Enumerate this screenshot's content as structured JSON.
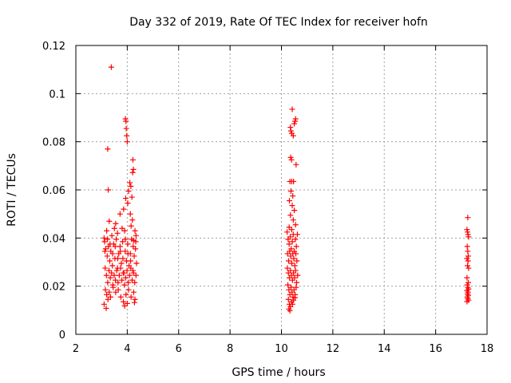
{
  "chart_data": {
    "type": "scatter",
    "title": "Day 332 of 2019, Rate Of TEC Index for receiver hofn",
    "xlabel": "GPS time / hours",
    "ylabel": "ROTI / TECUs",
    "xlim": [
      2,
      18
    ],
    "ylim": [
      0,
      0.12
    ],
    "x_ticks": [
      2,
      4,
      6,
      8,
      10,
      12,
      14,
      16,
      18
    ],
    "y_ticks": [
      0,
      0.02,
      0.04,
      0.06,
      0.08,
      0.1,
      0.12
    ],
    "x_tick_labels": [
      "2",
      "4",
      "6",
      "8",
      "10",
      "12",
      "14",
      "16",
      "18"
    ],
    "y_tick_labels": [
      "0",
      "0.02",
      "0.04",
      "0.06",
      "0.08",
      "0.1",
      "0.12"
    ],
    "grid": true,
    "marker": "+",
    "series": [
      {
        "name": "ROTI",
        "color": "#ff0000",
        "points": [
          [
            3.38,
            0.111
          ],
          [
            3.24,
            0.077
          ],
          [
            3.26,
            0.06
          ],
          [
            3.93,
            0.0895
          ],
          [
            3.95,
            0.0885
          ],
          [
            3.96,
            0.0855
          ],
          [
            3.98,
            0.0825
          ],
          [
            4.0,
            0.08
          ],
          [
            4.22,
            0.0725
          ],
          [
            4.24,
            0.0685
          ],
          [
            4.21,
            0.0672
          ],
          [
            4.1,
            0.063
          ],
          [
            4.14,
            0.0615
          ],
          [
            4.05,
            0.0595
          ],
          [
            4.18,
            0.057
          ],
          [
            3.94,
            0.0565
          ],
          [
            4.02,
            0.0545
          ],
          [
            3.86,
            0.052
          ],
          [
            4.12,
            0.05
          ],
          [
            4.2,
            0.0475
          ],
          [
            3.72,
            0.05
          ],
          [
            3.55,
            0.046
          ],
          [
            3.3,
            0.047
          ],
          [
            3.2,
            0.043
          ],
          [
            3.1,
            0.04
          ],
          [
            3.4,
            0.041
          ],
          [
            3.62,
            0.042
          ],
          [
            3.8,
            0.044
          ],
          [
            4.3,
            0.043
          ],
          [
            4.34,
            0.041
          ],
          [
            4.25,
            0.039
          ],
          [
            4.15,
            0.045
          ],
          [
            3.9,
            0.043
          ],
          [
            3.5,
            0.044
          ],
          [
            3.12,
            0.0385
          ],
          [
            3.16,
            0.0355
          ],
          [
            3.22,
            0.0325
          ],
          [
            3.27,
            0.0365
          ],
          [
            3.32,
            0.0305
          ],
          [
            3.36,
            0.0345
          ],
          [
            3.42,
            0.0285
          ],
          [
            3.47,
            0.0375
          ],
          [
            3.52,
            0.0315
          ],
          [
            3.57,
            0.0395
          ],
          [
            3.62,
            0.0275
          ],
          [
            3.67,
            0.0335
          ],
          [
            3.72,
            0.0365
          ],
          [
            3.77,
            0.0295
          ],
          [
            3.82,
            0.0385
          ],
          [
            3.87,
            0.0255
          ],
          [
            3.92,
            0.0345
          ],
          [
            3.97,
            0.0305
          ],
          [
            4.02,
            0.0375
          ],
          [
            4.07,
            0.0285
          ],
          [
            4.12,
            0.0335
          ],
          [
            4.17,
            0.0395
          ],
          [
            4.22,
            0.0265
          ],
          [
            4.27,
            0.0325
          ],
          [
            4.32,
            0.0355
          ],
          [
            4.36,
            0.0295
          ],
          [
            3.14,
            0.0275
          ],
          [
            3.19,
            0.0245
          ],
          [
            3.24,
            0.0215
          ],
          [
            3.29,
            0.0265
          ],
          [
            3.34,
            0.0235
          ],
          [
            3.39,
            0.0255
          ],
          [
            3.44,
            0.0205
          ],
          [
            3.49,
            0.0245
          ],
          [
            3.54,
            0.0225
          ],
          [
            3.59,
            0.0265
          ],
          [
            3.64,
            0.0215
          ],
          [
            3.69,
            0.0245
          ],
          [
            3.74,
            0.0275
          ],
          [
            3.79,
            0.0225
          ],
          [
            3.84,
            0.0255
          ],
          [
            3.89,
            0.0205
          ],
          [
            3.94,
            0.0235
          ],
          [
            3.99,
            0.0265
          ],
          [
            4.04,
            0.0215
          ],
          [
            4.09,
            0.0245
          ],
          [
            4.14,
            0.0275
          ],
          [
            4.19,
            0.0225
          ],
          [
            4.24,
            0.0255
          ],
          [
            4.29,
            0.0215
          ],
          [
            4.34,
            0.0245
          ],
          [
            3.15,
            0.0185
          ],
          [
            3.2,
            0.0165
          ],
          [
            3.25,
            0.0145
          ],
          [
            3.3,
            0.0175
          ],
          [
            3.35,
            0.0155
          ],
          [
            3.45,
            0.0195
          ],
          [
            3.55,
            0.0175
          ],
          [
            3.65,
            0.0185
          ],
          [
            3.75,
            0.0155
          ],
          [
            3.85,
            0.0135
          ],
          [
            3.95,
            0.0165
          ],
          [
            4.05,
            0.0185
          ],
          [
            4.15,
            0.0155
          ],
          [
            4.25,
            0.0175
          ],
          [
            4.3,
            0.0145
          ],
          [
            3.1,
            0.0125
          ],
          [
            3.18,
            0.0108
          ],
          [
            3.9,
            0.0118
          ],
          [
            4.0,
            0.0128
          ],
          [
            4.28,
            0.0132
          ],
          [
            3.13,
            0.0345
          ],
          [
            3.23,
            0.0395
          ],
          [
            3.33,
            0.0375
          ],
          [
            3.43,
            0.0335
          ],
          [
            3.53,
            0.0365
          ],
          [
            3.63,
            0.0315
          ],
          [
            3.73,
            0.0345
          ],
          [
            3.83,
            0.0315
          ],
          [
            3.93,
            0.0395
          ],
          [
            4.03,
            0.0335
          ],
          [
            4.13,
            0.0305
          ],
          [
            4.23,
            0.0365
          ],
          [
            4.33,
            0.0385
          ],
          [
            10.42,
            0.0935
          ],
          [
            10.55,
            0.0895
          ],
          [
            10.53,
            0.0885
          ],
          [
            10.5,
            0.0875
          ],
          [
            10.35,
            0.086
          ],
          [
            10.37,
            0.0845
          ],
          [
            10.4,
            0.0835
          ],
          [
            10.46,
            0.0825
          ],
          [
            10.36,
            0.0735
          ],
          [
            10.39,
            0.0725
          ],
          [
            10.57,
            0.0705
          ],
          [
            10.33,
            0.0635
          ],
          [
            10.4,
            0.0635
          ],
          [
            10.47,
            0.0635
          ],
          [
            10.37,
            0.0595
          ],
          [
            10.44,
            0.0575
          ],
          [
            10.31,
            0.0555
          ],
          [
            10.42,
            0.0535
          ],
          [
            10.5,
            0.0515
          ],
          [
            10.35,
            0.0495
          ],
          [
            10.46,
            0.0475
          ],
          [
            10.55,
            0.0455
          ],
          [
            10.3,
            0.0445
          ],
          [
            10.4,
            0.0435
          ],
          [
            10.22,
            0.0425
          ],
          [
            10.26,
            0.0395
          ],
          [
            10.3,
            0.0375
          ],
          [
            10.34,
            0.0405
          ],
          [
            10.38,
            0.0355
          ],
          [
            10.42,
            0.0385
          ],
          [
            10.46,
            0.0415
          ],
          [
            10.5,
            0.0345
          ],
          [
            10.54,
            0.0395
          ],
          [
            10.58,
            0.0365
          ],
          [
            10.62,
            0.0415
          ],
          [
            10.24,
            0.0335
          ],
          [
            10.28,
            0.0305
          ],
          [
            10.32,
            0.0345
          ],
          [
            10.36,
            0.0325
          ],
          [
            10.4,
            0.0295
          ],
          [
            10.44,
            0.0335
          ],
          [
            10.48,
            0.0315
          ],
          [
            10.52,
            0.0285
          ],
          [
            10.56,
            0.0335
          ],
          [
            10.6,
            0.0305
          ],
          [
            10.23,
            0.0275
          ],
          [
            10.27,
            0.0255
          ],
          [
            10.31,
            0.0235
          ],
          [
            10.35,
            0.0265
          ],
          [
            10.39,
            0.0245
          ],
          [
            10.43,
            0.0225
          ],
          [
            10.47,
            0.0255
          ],
          [
            10.51,
            0.0235
          ],
          [
            10.55,
            0.0265
          ],
          [
            10.59,
            0.0215
          ],
          [
            10.63,
            0.0245
          ],
          [
            10.25,
            0.0205
          ],
          [
            10.29,
            0.0185
          ],
          [
            10.33,
            0.0165
          ],
          [
            10.37,
            0.0195
          ],
          [
            10.41,
            0.0175
          ],
          [
            10.45,
            0.0155
          ],
          [
            10.49,
            0.0185
          ],
          [
            10.53,
            0.0165
          ],
          [
            10.57,
            0.0195
          ],
          [
            10.27,
            0.0145
          ],
          [
            10.31,
            0.0125
          ],
          [
            10.35,
            0.0115
          ],
          [
            10.39,
            0.0135
          ],
          [
            10.29,
            0.0105
          ],
          [
            10.33,
            0.0098
          ],
          [
            10.43,
            0.0125
          ],
          [
            10.47,
            0.0142
          ],
          [
            10.53,
            0.0152
          ],
          [
            17.25,
            0.0485
          ],
          [
            17.22,
            0.0435
          ],
          [
            17.24,
            0.0425
          ],
          [
            17.26,
            0.0415
          ],
          [
            17.28,
            0.0405
          ],
          [
            17.23,
            0.0365
          ],
          [
            17.25,
            0.0345
          ],
          [
            17.27,
            0.0325
          ],
          [
            17.22,
            0.0315
          ],
          [
            17.26,
            0.0305
          ],
          [
            17.24,
            0.0285
          ],
          [
            17.28,
            0.0275
          ],
          [
            17.22,
            0.0235
          ],
          [
            17.27,
            0.0215
          ],
          [
            17.23,
            0.0205
          ],
          [
            17.25,
            0.0195
          ],
          [
            17.28,
            0.0188
          ],
          [
            17.22,
            0.0182
          ],
          [
            17.26,
            0.0175
          ],
          [
            17.24,
            0.0168
          ],
          [
            17.27,
            0.0162
          ],
          [
            17.23,
            0.0155
          ],
          [
            17.25,
            0.0148
          ],
          [
            17.28,
            0.0142
          ],
          [
            17.22,
            0.0136
          ]
        ]
      }
    ]
  }
}
